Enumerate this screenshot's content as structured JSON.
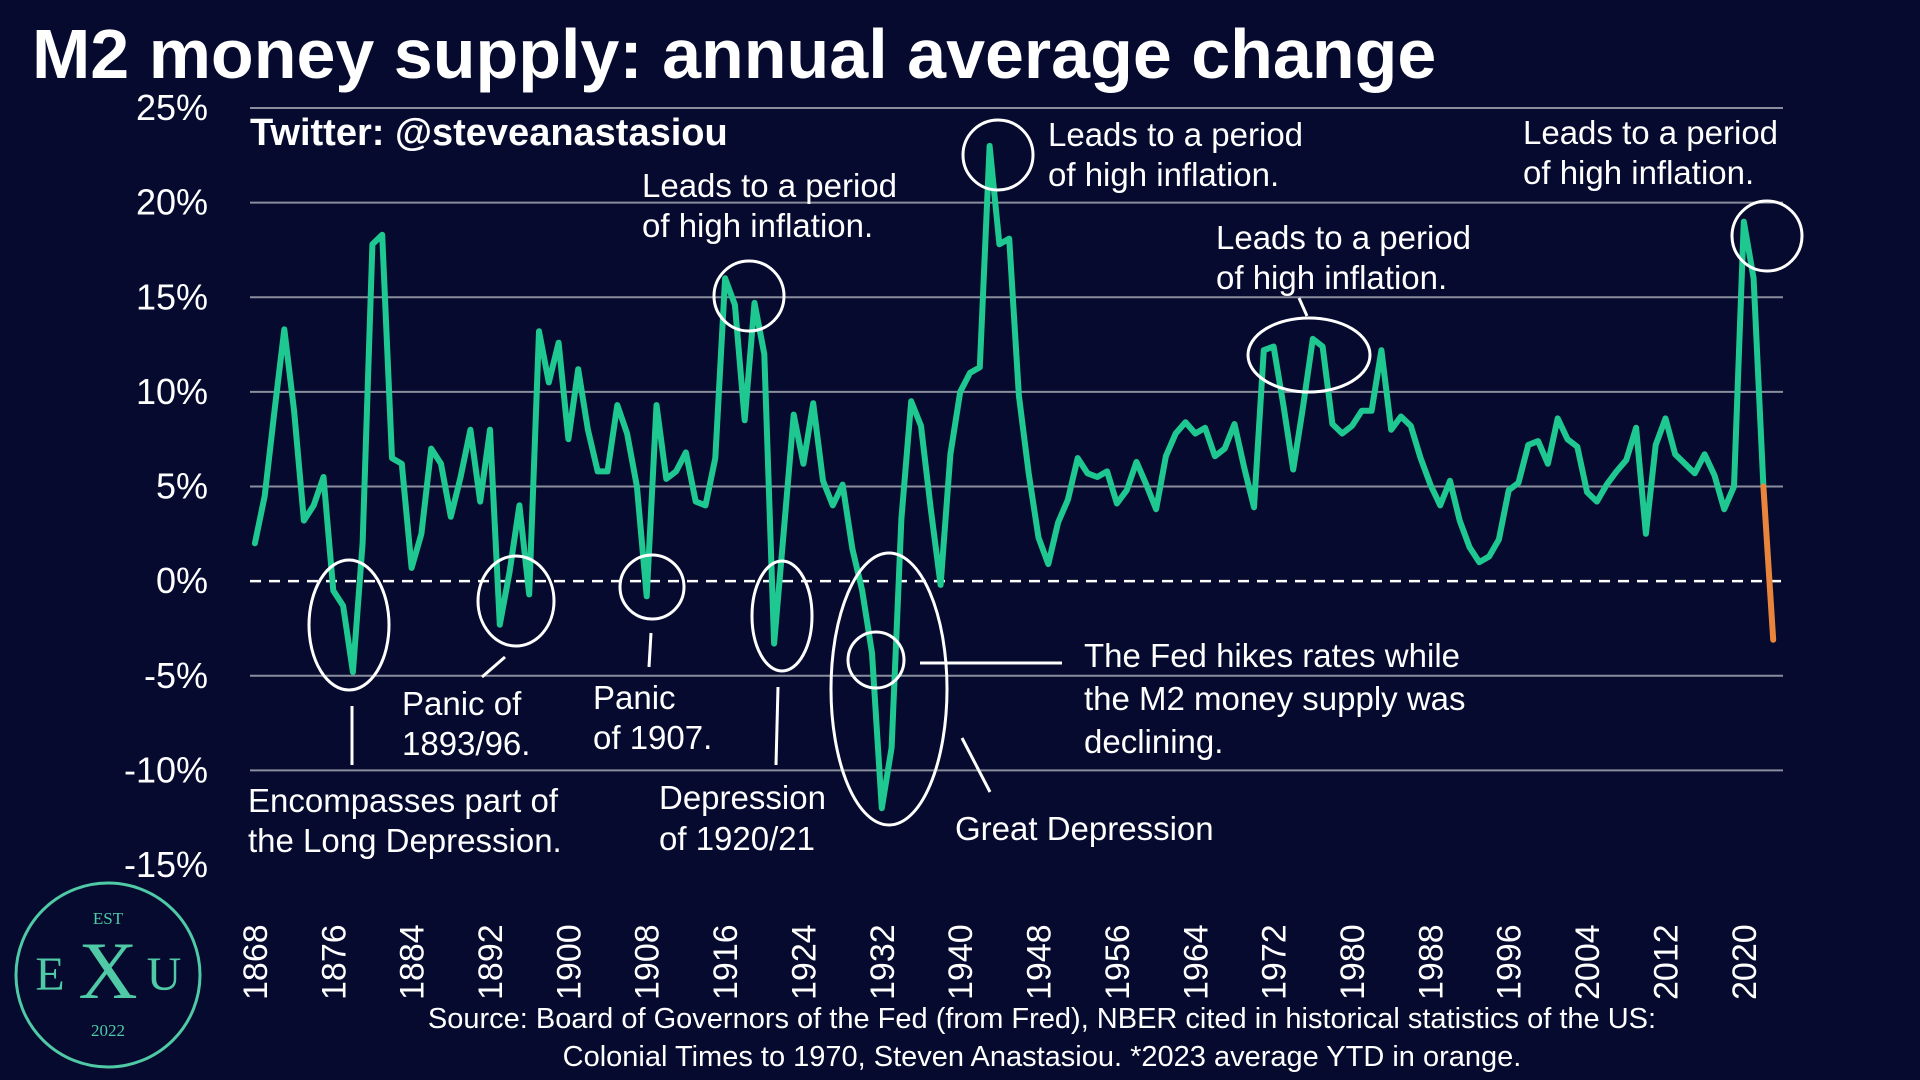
{
  "colors": {
    "background": "#050a2e",
    "line": "#1fc891",
    "ytd": "#e8843b",
    "grid": "#8a8d9c",
    "text": "#ffffff",
    "logo": "#4fc9a6"
  },
  "handle": "Twitter: @steveanastasiou",
  "source": {
    "line1": "Source: Board of Governors of the Fed (from Fred), NBER cited in historical statistics of the US:",
    "line2": "Colonial Times to 1970, Steven Anastasiou. *2023 average YTD in orange."
  },
  "logo": {
    "top": "EST",
    "left": "E",
    "center": "X",
    "right": "U",
    "bottom": "2022"
  },
  "annotations": {
    "inflation_1917": [
      "Leads to a period",
      "of high inflation."
    ],
    "inflation_1943": [
      "Leads to a period",
      "of high inflation."
    ],
    "inflation_1970s": [
      "Leads to a period",
      "of high inflation."
    ],
    "inflation_2021": [
      "Leads to a period",
      "of high inflation."
    ],
    "long_depression": [
      "Encompasses  part  of",
      "the Long Depression."
    ],
    "panic_1893": [
      "Panic    of",
      "1893/96."
    ],
    "panic_1907": [
      "Panic",
      "of 1907."
    ],
    "depression_1920": [
      "Depression",
      "of 1920/21"
    ],
    "great_depression": [
      "Great Depression"
    ],
    "fed_hikes": [
      "The  Fed  hikes  rates  while",
      "the  M2  money  supply  was",
      "declining."
    ]
  },
  "chart_data": {
    "type": "line",
    "title": "M2 money supply: annual average change",
    "xlabel": "",
    "ylabel": "",
    "ylim": [
      -15,
      25
    ],
    "xlim": [
      1867.5,
      2024
    ],
    "y_ticks": [
      25,
      20,
      15,
      10,
      5,
      0,
      -5,
      -10,
      -15
    ],
    "y_tick_labels": [
      "25%",
      "20%",
      "15%",
      "10%",
      "5%",
      "0%",
      "-5%",
      "-10%",
      "-15%"
    ],
    "x_ticks": [
      1868,
      1876,
      1884,
      1892,
      1900,
      1908,
      1916,
      1924,
      1932,
      1940,
      1948,
      1956,
      1964,
      1972,
      1980,
      1988,
      1996,
      2004,
      2012,
      2020
    ],
    "x_tick_labels": [
      "1868",
      "1876",
      "1884",
      "1892",
      "1900",
      "1908",
      "1916",
      "1924",
      "1932",
      "1940",
      "1948",
      "1956",
      "1964",
      "1972",
      "1980",
      "1988",
      "1996",
      "2004",
      "2012",
      "2020"
    ],
    "grid": true,
    "zero_line": "dashed",
    "series": [
      {
        "color": "#1fc891",
        "x": [
          1868,
          1869,
          1870,
          1871,
          1872,
          1873,
          1874,
          1875,
          1876,
          1877,
          1878,
          1879,
          1880,
          1881,
          1882,
          1883,
          1884,
          1885,
          1886,
          1887,
          1888,
          1889,
          1890,
          1891,
          1892,
          1893,
          1894,
          1895,
          1896,
          1897,
          1898,
          1899,
          1900,
          1901,
          1902,
          1903,
          1904,
          1905,
          1906,
          1907,
          1908,
          1909,
          1910,
          1911,
          1912,
          1913,
          1914,
          1915,
          1916,
          1917,
          1918,
          1919,
          1920,
          1921,
          1922,
          1923,
          1924,
          1925,
          1926,
          1927,
          1928,
          1929,
          1930,
          1931,
          1932,
          1933,
          1934,
          1935,
          1936,
          1937,
          1938,
          1939,
          1940,
          1941,
          1942,
          1943,
          1944,
          1945,
          1946,
          1947,
          1948,
          1949,
          1950,
          1951,
          1952,
          1953,
          1954,
          1955,
          1956,
          1957,
          1958,
          1959,
          1960,
          1961,
          1962,
          1963,
          1964,
          1965,
          1966,
          1967,
          1968,
          1969,
          1970,
          1971,
          1972,
          1973,
          1974,
          1975,
          1976,
          1977,
          1978,
          1979,
          1980,
          1981,
          1982,
          1983,
          1984,
          1985,
          1986,
          1987,
          1988,
          1989,
          1990,
          1991,
          1992,
          1993,
          1994,
          1995,
          1996,
          1997,
          1998,
          1999,
          2000,
          2001,
          2002,
          2003,
          2004,
          2005,
          2006,
          2007,
          2008,
          2009,
          2010,
          2011,
          2012,
          2013,
          2014,
          2015,
          2016,
          2017,
          2018,
          2019,
          2020,
          2021,
          2022
        ],
        "values": [
          2.0,
          4.5,
          9.0,
          13.3,
          9.0,
          3.2,
          4.0,
          5.5,
          -0.5,
          -1.3,
          -4.8,
          2.0,
          17.8,
          18.3,
          6.5,
          6.2,
          0.7,
          2.5,
          7.0,
          6.2,
          3.4,
          5.5,
          8.0,
          4.2,
          8.0,
          -2.3,
          0.5,
          4.0,
          -0.7,
          13.2,
          10.5,
          12.6,
          7.5,
          11.2,
          8.0,
          5.8,
          5.8,
          9.3,
          7.8,
          5.0,
          -0.8,
          9.3,
          5.4,
          5.8,
          6.8,
          4.2,
          4.0,
          6.5,
          16.0,
          14.6,
          8.5,
          14.7,
          12.0,
          -3.3,
          2.7,
          8.8,
          6.2,
          9.4,
          5.3,
          4.0,
          5.1,
          1.7,
          -0.5,
          -3.8,
          -12.0,
          -8.8,
          3.3,
          9.5,
          8.2,
          3.8,
          -0.2,
          6.7,
          10.0,
          11.0,
          11.3,
          23.0,
          17.8,
          18.1,
          9.8,
          5.7,
          2.3,
          0.9,
          3.1,
          4.3,
          6.5,
          5.7,
          5.5,
          5.8,
          4.1,
          4.8,
          6.3,
          5.1,
          3.8,
          6.6,
          7.8,
          8.4,
          7.8,
          8.1,
          6.6,
          7.0,
          8.3,
          6.0,
          3.9,
          12.2,
          12.4,
          9.3,
          5.9,
          9.2,
          12.8,
          12.4,
          8.3,
          7.8,
          8.2,
          9.0,
          9.0,
          12.2,
          8.0,
          8.7,
          8.2,
          6.5,
          5.1,
          4.0,
          5.3,
          3.2,
          1.8,
          1.0,
          1.3,
          2.2,
          4.8,
          5.2,
          7.2,
          7.4,
          6.2,
          8.6,
          7.5,
          7.1,
          4.7,
          4.2,
          5.1,
          5.8,
          6.4,
          8.1,
          2.5,
          7.2,
          8.6,
          6.7,
          6.2,
          5.7,
          6.7,
          5.6,
          3.8,
          5.0,
          19.0,
          16.0,
          5.0
        ]
      },
      {
        "color": "#e8843b",
        "x": [
          2022,
          2023
        ],
        "values": [
          5.0,
          -3.1
        ]
      }
    ]
  }
}
